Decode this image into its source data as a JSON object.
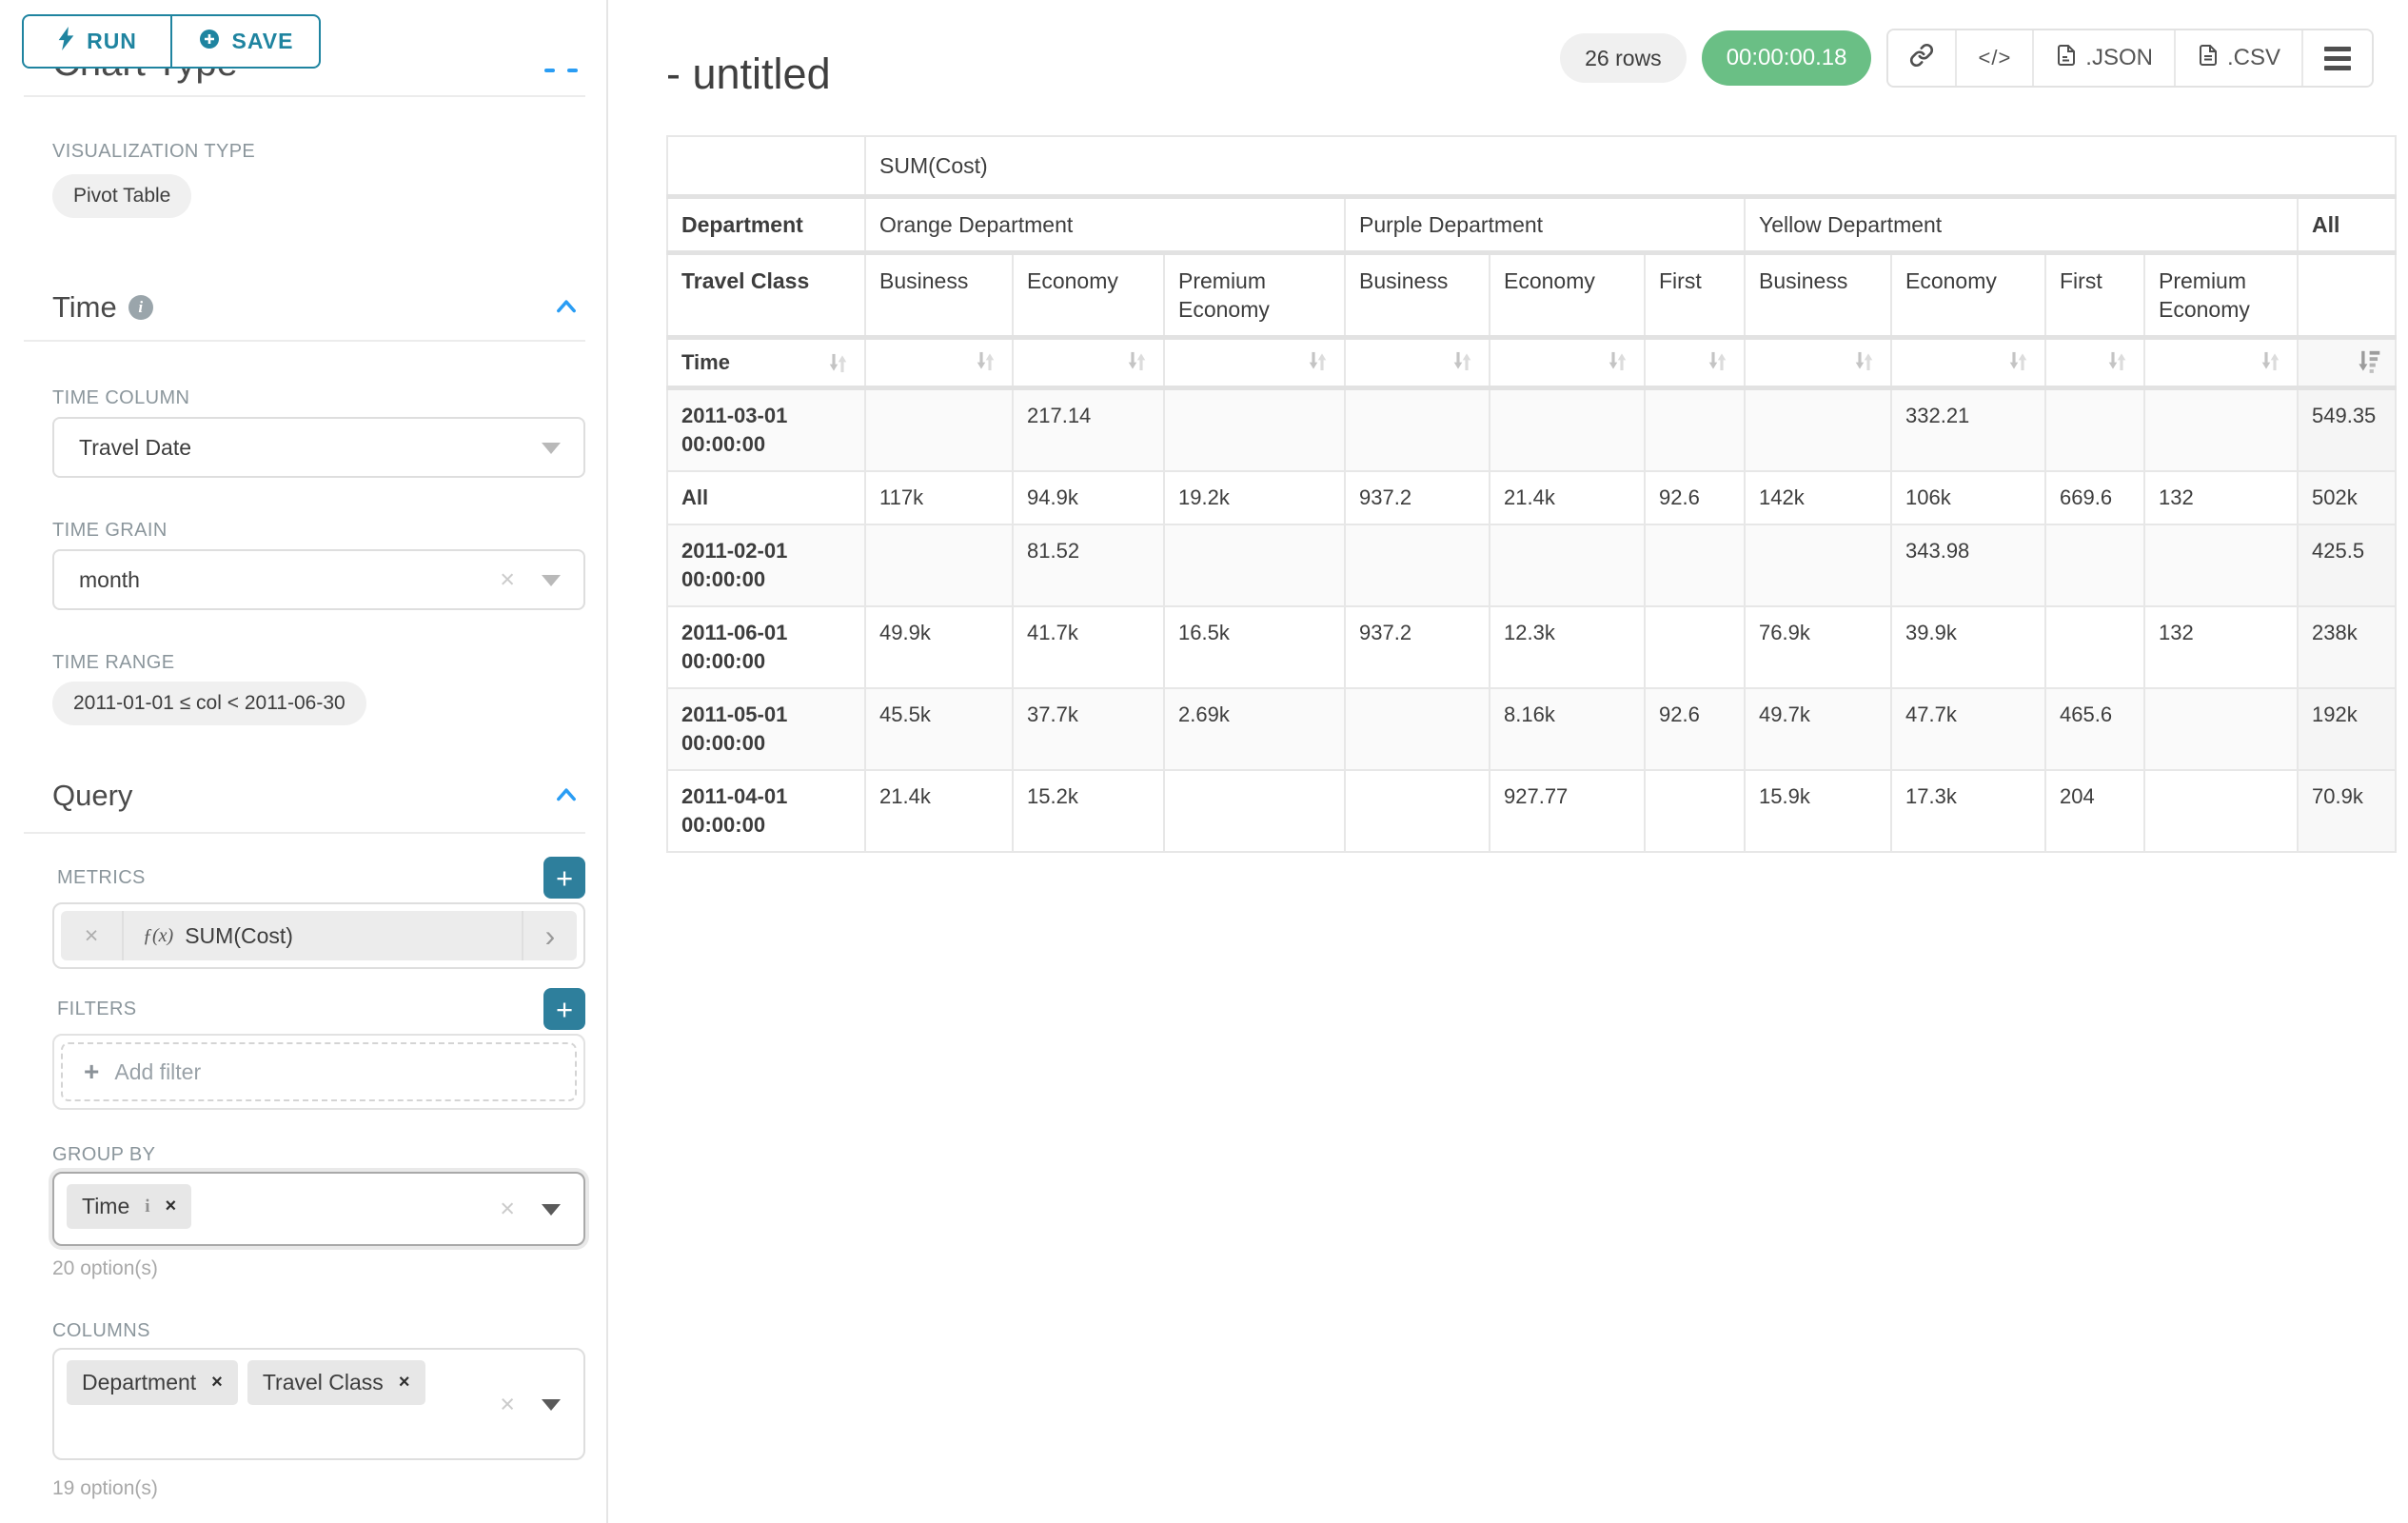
{
  "sidebar": {
    "run_button": "RUN",
    "save_button": "SAVE",
    "chart_type_section": "Chart Type",
    "visualization_type_label": "VISUALIZATION TYPE",
    "visualization_type_value": "Pivot Table",
    "time_section_title": "Time",
    "time_column_label": "TIME COLUMN",
    "time_column_value": "Travel Date",
    "time_grain_label": "TIME GRAIN",
    "time_grain_value": "month",
    "time_range_label": "TIME RANGE",
    "time_range_value": "2011-01-01 ≤ col < 2011-06-30",
    "query_section_title": "Query",
    "metrics_label": "METRICS",
    "metric_function_icon": "ƒ(x)",
    "metric_value": "SUM(Cost)",
    "filters_label": "FILTERS",
    "add_filter_placeholder": "Add filter",
    "group_by_label": "GROUP BY",
    "group_by_values": [
      "Time"
    ],
    "group_by_hint": "20 option(s)",
    "columns_label": "COLUMNS",
    "columns_values": [
      "Department",
      "Travel Class"
    ],
    "columns_hint": "19 option(s)"
  },
  "header": {
    "title": "- untitled",
    "row_count_badge": "26 rows",
    "query_timer": "00:00:00.18",
    "export_json_label": ".JSON",
    "export_csv_label": ".CSV",
    "code_icon_glyph": "</>"
  },
  "pivot_table": {
    "metric_header": "SUM(Cost)",
    "department_label": "Department",
    "travel_class_label": "Travel Class",
    "time_label": "Time",
    "column_groups": [
      {
        "department": "Orange Department",
        "travel_classes": [
          "Business",
          "Economy",
          "Premium Economy"
        ]
      },
      {
        "department": "Purple Department",
        "travel_classes": [
          "Business",
          "Economy",
          "First"
        ]
      },
      {
        "department": "Yellow Department",
        "travel_classes": [
          "Business",
          "Economy",
          "First",
          "Premium Economy"
        ]
      },
      {
        "department": "All",
        "travel_classes": [
          ""
        ]
      }
    ],
    "rows": [
      {
        "label": "2011-03-01 00:00:00",
        "values": [
          "",
          "217.14",
          "",
          "",
          "",
          "",
          "",
          "332.21",
          "",
          "",
          "549.35"
        ]
      },
      {
        "label": "All",
        "values": [
          "117k",
          "94.9k",
          "19.2k",
          "937.2",
          "21.4k",
          "92.6",
          "142k",
          "106k",
          "669.6",
          "132",
          "502k"
        ]
      },
      {
        "label": "2011-02-01 00:00:00",
        "values": [
          "",
          "81.52",
          "",
          "",
          "",
          "",
          "",
          "343.98",
          "",
          "",
          "425.5"
        ]
      },
      {
        "label": "2011-06-01 00:00:00",
        "values": [
          "49.9k",
          "41.7k",
          "16.5k",
          "937.2",
          "12.3k",
          "",
          "76.9k",
          "39.9k",
          "",
          "132",
          "238k"
        ]
      },
      {
        "label": "2011-05-01 00:00:00",
        "values": [
          "45.5k",
          "37.7k",
          "2.69k",
          "",
          "8.16k",
          "92.6",
          "49.7k",
          "47.7k",
          "465.6",
          "",
          "192k"
        ]
      },
      {
        "label": "2011-04-01 00:00:00",
        "values": [
          "21.4k",
          "15.2k",
          "",
          "",
          "927.77",
          "",
          "15.9k",
          "17.3k",
          "204",
          "",
          "70.9k"
        ]
      }
    ]
  },
  "colors": {
    "accent_teal": "#1f84a0",
    "accent_blue": "#2a9df4",
    "timer_green": "#6abf85"
  }
}
